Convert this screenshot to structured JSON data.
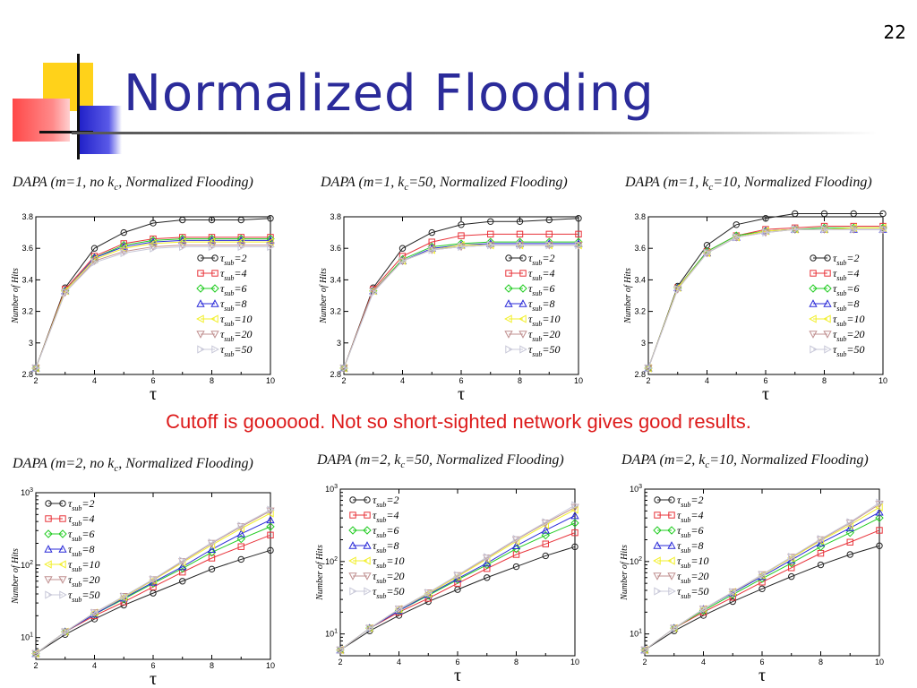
{
  "slide": {
    "number": "22",
    "title": "Normalized Flooding",
    "caption": "Cutoff is goooood. Not so short-sighted network gives good results."
  },
  "series_style": [
    {
      "tau_sub": "2",
      "color": "#222222",
      "marker": "circle"
    },
    {
      "tau_sub": "4",
      "color": "#e8333a",
      "marker": "square"
    },
    {
      "tau_sub": "6",
      "color": "#22cc22",
      "marker": "diamond"
    },
    {
      "tau_sub": "8",
      "color": "#2a2ad8",
      "marker": "triangle-up"
    },
    {
      "tau_sub": "10",
      "color": "#f2ef2a",
      "marker": "triangle-left"
    },
    {
      "tau_sub": "20",
      "color": "#c09090",
      "marker": "triangle-down"
    },
    {
      "tau_sub": "50",
      "color": "#c8c8d8",
      "marker": "triangle-right"
    }
  ],
  "chart_data": [
    {
      "type": "line",
      "title_parts": [
        "DAPA (m=1, no k",
        "c",
        ", Normalized Flooding)"
      ],
      "xlabel": "τ",
      "ylabel": "Number of Hits",
      "xlim": [
        2,
        10
      ],
      "ylim": [
        2.8,
        3.8
      ],
      "yscale": "linear",
      "xticks": [
        "2",
        "4",
        "6",
        "8",
        "10"
      ],
      "yticks": [
        "2.8",
        "3",
        "3.2",
        "3.4",
        "3.6",
        "3.8"
      ],
      "legend_position": "center-right",
      "x": [
        2,
        3,
        4,
        5,
        6,
        7,
        8,
        9,
        10
      ],
      "series": [
        {
          "name": "τsub=2",
          "values": [
            2.84,
            3.35,
            3.6,
            3.7,
            3.76,
            3.78,
            3.78,
            3.78,
            3.79
          ]
        },
        {
          "name": "τsub=4",
          "values": [
            2.84,
            3.34,
            3.55,
            3.63,
            3.66,
            3.67,
            3.67,
            3.67,
            3.67
          ]
        },
        {
          "name": "τsub=6",
          "values": [
            2.84,
            3.33,
            3.54,
            3.62,
            3.65,
            3.66,
            3.66,
            3.66,
            3.66
          ]
        },
        {
          "name": "τsub=8",
          "values": [
            2.84,
            3.33,
            3.54,
            3.61,
            3.64,
            3.65,
            3.65,
            3.65,
            3.65
          ]
        },
        {
          "name": "τsub=10",
          "values": [
            2.84,
            3.33,
            3.53,
            3.6,
            3.63,
            3.64,
            3.64,
            3.64,
            3.64
          ]
        },
        {
          "name": "τsub=20",
          "values": [
            2.84,
            3.32,
            3.52,
            3.58,
            3.61,
            3.62,
            3.62,
            3.62,
            3.62
          ]
        },
        {
          "name": "τsub=50",
          "values": [
            2.84,
            3.32,
            3.51,
            3.57,
            3.6,
            3.61,
            3.61,
            3.61,
            3.61
          ]
        }
      ]
    },
    {
      "type": "line",
      "title_parts": [
        "DAPA (m=1, k",
        "c",
        "=50, Normalized Flooding)"
      ],
      "xlabel": "τ",
      "ylabel": "Number of Hits",
      "xlim": [
        2,
        10
      ],
      "ylim": [
        2.8,
        3.8
      ],
      "yscale": "linear",
      "xticks": [
        "2",
        "4",
        "6",
        "8",
        "10"
      ],
      "yticks": [
        "2.8",
        "3",
        "3.2",
        "3.4",
        "3.6",
        "3.8"
      ],
      "legend_position": "center-right",
      "x": [
        2,
        3,
        4,
        5,
        6,
        7,
        8,
        9,
        10
      ],
      "series": [
        {
          "name": "τsub=2",
          "values": [
            2.84,
            3.35,
            3.6,
            3.7,
            3.75,
            3.77,
            3.77,
            3.78,
            3.79
          ]
        },
        {
          "name": "τsub=4",
          "values": [
            2.84,
            3.34,
            3.55,
            3.64,
            3.68,
            3.69,
            3.69,
            3.69,
            3.69
          ]
        },
        {
          "name": "τsub=6",
          "values": [
            2.84,
            3.33,
            3.53,
            3.61,
            3.63,
            3.64,
            3.64,
            3.64,
            3.64
          ]
        },
        {
          "name": "τsub=8",
          "values": [
            2.84,
            3.33,
            3.52,
            3.6,
            3.62,
            3.63,
            3.63,
            3.63,
            3.63
          ]
        },
        {
          "name": "τsub=10",
          "values": [
            2.84,
            3.33,
            3.52,
            3.59,
            3.62,
            3.62,
            3.62,
            3.62,
            3.62
          ]
        },
        {
          "name": "τsub=20",
          "values": [
            2.84,
            3.33,
            3.52,
            3.59,
            3.61,
            3.62,
            3.62,
            3.62,
            3.62
          ]
        },
        {
          "name": "τsub=50",
          "values": [
            2.84,
            3.32,
            3.52,
            3.59,
            3.61,
            3.62,
            3.62,
            3.62,
            3.62
          ]
        }
      ]
    },
    {
      "type": "line",
      "title_parts": [
        "DAPA (m=1, k",
        "c",
        "=10, Normalized Flooding)"
      ],
      "xlabel": "τ",
      "ylabel": "Number of Hits",
      "xlim": [
        2,
        10
      ],
      "ylim": [
        2.8,
        3.8
      ],
      "yscale": "linear",
      "xticks": [
        "2",
        "4",
        "6",
        "8",
        "10"
      ],
      "yticks": [
        "2.8",
        "3",
        "3.2",
        "3.4",
        "3.6",
        "3.8"
      ],
      "legend_position": "center-right",
      "x": [
        2,
        3,
        4,
        5,
        6,
        7,
        8,
        9,
        10
      ],
      "series": [
        {
          "name": "τsub=2",
          "values": [
            2.84,
            3.36,
            3.62,
            3.75,
            3.79,
            3.82,
            3.82,
            3.82,
            3.82
          ]
        },
        {
          "name": "τsub=4",
          "values": [
            2.84,
            3.35,
            3.58,
            3.68,
            3.72,
            3.73,
            3.74,
            3.74,
            3.74
          ]
        },
        {
          "name": "τsub=6",
          "values": [
            2.84,
            3.35,
            3.58,
            3.68,
            3.71,
            3.72,
            3.73,
            3.73,
            3.73
          ]
        },
        {
          "name": "τsub=8",
          "values": [
            2.84,
            3.35,
            3.57,
            3.67,
            3.71,
            3.72,
            3.72,
            3.72,
            3.72
          ]
        },
        {
          "name": "τsub=10",
          "values": [
            2.84,
            3.35,
            3.57,
            3.67,
            3.71,
            3.72,
            3.72,
            3.73,
            3.73
          ]
        },
        {
          "name": "τsub=20",
          "values": [
            2.84,
            3.34,
            3.57,
            3.67,
            3.7,
            3.72,
            3.72,
            3.72,
            3.72
          ]
        },
        {
          "name": "τsub=50",
          "values": [
            2.84,
            3.34,
            3.57,
            3.67,
            3.7,
            3.72,
            3.72,
            3.72,
            3.72
          ]
        }
      ]
    },
    {
      "type": "line",
      "title_parts": [
        "DAPA (m=2, no k",
        "c",
        ", Normalized Flooding)"
      ],
      "xlabel": "τ",
      "ylabel": "Number of Hits",
      "xlim": [
        2,
        10
      ],
      "ylim": [
        5,
        1000
      ],
      "yscale": "log",
      "xticks": [
        "2",
        "4",
        "6",
        "8",
        "10"
      ],
      "yticks_log": [
        {
          "base": "10",
          "exp": "1",
          "v": 10
        },
        {
          "base": "10",
          "exp": "2",
          "v": 100
        },
        {
          "base": "10",
          "exp": "3",
          "v": 1000
        }
      ],
      "legend_position": "top-left",
      "x": [
        2,
        3,
        4,
        5,
        6,
        7,
        8,
        9,
        10
      ],
      "series": [
        {
          "name": "τsub=2",
          "values": [
            6,
            11,
            18,
            28,
            41,
            60,
            88,
            120,
            160
          ]
        },
        {
          "name": "τsub=4",
          "values": [
            6,
            12,
            20,
            31,
            50,
            80,
            125,
            180,
            260
          ]
        },
        {
          "name": "τsub=6",
          "values": [
            6,
            12,
            21,
            34,
            56,
            90,
            150,
            230,
            340
          ]
        },
        {
          "name": "τsub=8",
          "values": [
            6,
            12,
            21,
            35,
            58,
            95,
            165,
            270,
            420
          ]
        },
        {
          "name": "τsub=10",
          "values": [
            6,
            12,
            22,
            36,
            62,
            108,
            190,
            320,
            520
          ]
        },
        {
          "name": "τsub=20",
          "values": [
            6,
            12,
            22,
            37,
            63,
            112,
            200,
            340,
            560
          ]
        },
        {
          "name": "τsub=50",
          "values": [
            6,
            12,
            22,
            37,
            64,
            115,
            205,
            350,
            580
          ]
        }
      ]
    },
    {
      "type": "line",
      "title_parts": [
        "DAPA (m=2, k",
        "c",
        "=50, Normalized Flooding)"
      ],
      "xlabel": "τ",
      "ylabel": "Number of Hits",
      "xlim": [
        2,
        10
      ],
      "ylim": [
        5,
        1000
      ],
      "yscale": "log",
      "xticks": [
        "2",
        "4",
        "6",
        "8",
        "10"
      ],
      "yticks_log": [
        {
          "base": "10",
          "exp": "1",
          "v": 10
        },
        {
          "base": "10",
          "exp": "2",
          "v": 100
        },
        {
          "base": "10",
          "exp": "3",
          "v": 1000
        }
      ],
      "legend_position": "top-left",
      "x": [
        2,
        3,
        4,
        5,
        6,
        7,
        8,
        9,
        10
      ],
      "series": [
        {
          "name": "τsub=2",
          "values": [
            6,
            11,
            18,
            28,
            41,
            60,
            85,
            120,
            160
          ]
        },
        {
          "name": "τsub=4",
          "values": [
            6,
            12,
            20,
            31,
            50,
            80,
            125,
            175,
            250
          ]
        },
        {
          "name": "τsub=6",
          "values": [
            6,
            12,
            21,
            34,
            56,
            90,
            150,
            230,
            340
          ]
        },
        {
          "name": "τsub=8",
          "values": [
            6,
            12,
            21,
            35,
            58,
            95,
            165,
            270,
            430
          ]
        },
        {
          "name": "τsub=10",
          "values": [
            6,
            12,
            22,
            36,
            62,
            108,
            190,
            320,
            520
          ]
        },
        {
          "name": "τsub=20",
          "values": [
            6,
            12,
            22,
            37,
            64,
            112,
            200,
            340,
            560
          ]
        },
        {
          "name": "τsub=50",
          "values": [
            6,
            12,
            22,
            37,
            65,
            115,
            205,
            350,
            600
          ]
        }
      ]
    },
    {
      "type": "line",
      "title_parts": [
        "DAPA (m=2, k",
        "c",
        "=10, Normalized Flooding)"
      ],
      "xlabel": "τ",
      "ylabel": "Number of Hits",
      "xlim": [
        2,
        10
      ],
      "ylim": [
        5,
        1000
      ],
      "yscale": "log",
      "xticks": [
        "2",
        "4",
        "6",
        "8",
        "10"
      ],
      "yticks_log": [
        {
          "base": "10",
          "exp": "1",
          "v": 10
        },
        {
          "base": "10",
          "exp": "2",
          "v": 100
        },
        {
          "base": "10",
          "exp": "3",
          "v": 1000
        }
      ],
      "legend_position": "top-left",
      "x": [
        2,
        3,
        4,
        5,
        6,
        7,
        8,
        9,
        10
      ],
      "series": [
        {
          "name": "τsub=2",
          "values": [
            6,
            11,
            18,
            28,
            42,
            62,
            90,
            125,
            165
          ]
        },
        {
          "name": "τsub=4",
          "values": [
            6,
            12,
            20,
            32,
            52,
            82,
            130,
            185,
            270
          ]
        },
        {
          "name": "τsub=6",
          "values": [
            6,
            12,
            21,
            35,
            58,
            95,
            160,
            250,
            400
          ]
        },
        {
          "name": "τsub=8",
          "values": [
            6,
            12,
            22,
            37,
            62,
            105,
            180,
            290,
            480
          ]
        },
        {
          "name": "τsub=10",
          "values": [
            6,
            12,
            22,
            38,
            65,
            112,
            195,
            320,
            560
          ]
        },
        {
          "name": "τsub=20",
          "values": [
            6,
            12,
            22,
            38,
            66,
            115,
            200,
            340,
            620
          ]
        },
        {
          "name": "τsub=50",
          "values": [
            6,
            12,
            22,
            38,
            66,
            116,
            205,
            350,
            650
          ]
        }
      ]
    }
  ]
}
